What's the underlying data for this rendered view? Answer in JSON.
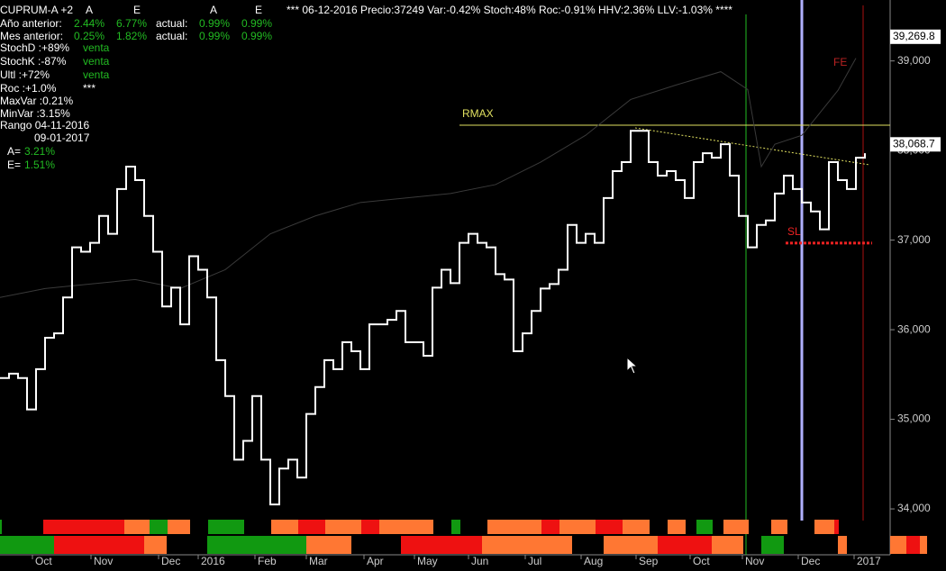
{
  "panel": {
    "rows": [
      [
        "CUPRUM-A +2",
        "A",
        "E",
        "A",
        "E"
      ],
      [
        "Año anterior:",
        "2.44%",
        "6.77%",
        "actual:",
        "0.99%",
        "0.99%"
      ],
      [
        "Mes anterior:",
        "0.25%",
        "1.82%",
        "actual:",
        "0.99%",
        "0.99%"
      ],
      [
        "StochD  :+89%",
        "venta"
      ],
      [
        "StochK  :-87%",
        "venta"
      ],
      [
        "Ultl      :+72%",
        "venta"
      ],
      [
        "Roc      :+1.0%",
        "***"
      ],
      [
        "MaxVar :0.21%"
      ],
      [
        "MinVar :3.15%"
      ],
      [
        "Rango 04-11-2016"
      ],
      [
        "09-01-2017"
      ],
      [
        "A=",
        "3.21%"
      ],
      [
        "E=",
        "1.51%"
      ]
    ]
  },
  "chart_data": {
    "type": "line",
    "title": "*** 06-12-2016 Precio:37249 Var:-0.42% Stoch:48% Roc:-0.91% HHV:2.36% LLV:-1.03% ****",
    "x": [
      0,
      1,
      2,
      3,
      4,
      5,
      6,
      7,
      8,
      9,
      10,
      11,
      12,
      13,
      14,
      15,
      16,
      17,
      18,
      19,
      20,
      21,
      22,
      23,
      24,
      25,
      26,
      27,
      28,
      29,
      30,
      31,
      32,
      33,
      34,
      35,
      36,
      37,
      38,
      39,
      40,
      41,
      42,
      43,
      44,
      45,
      46,
      47,
      48,
      49,
      50,
      51,
      52,
      53,
      54,
      55,
      56,
      57,
      58,
      59,
      60,
      61,
      62,
      63,
      64,
      65,
      66,
      67,
      68,
      69,
      70,
      71,
      72,
      73,
      74,
      75,
      76,
      77,
      78,
      79,
      80,
      81,
      82,
      83,
      84,
      85,
      86,
      87,
      88,
      89,
      90,
      91,
      92,
      93,
      94,
      95,
      96
    ],
    "series": [
      {
        "color": "#ffffff",
        "values": [
          35460,
          35510,
          35460,
          35110,
          35560,
          35910,
          35960,
          36360,
          36920,
          36870,
          36970,
          37270,
          37070,
          37570,
          37820,
          37670,
          37270,
          36870,
          36260,
          36470,
          36060,
          36820,
          36670,
          36360,
          35660,
          35260,
          34550,
          34760,
          35260,
          34550,
          34050,
          34450,
          34550,
          34350,
          35060,
          35360,
          35660,
          35560,
          35860,
          35760,
          35560,
          36060,
          36060,
          36110,
          36210,
          35860,
          35860,
          35710,
          36470,
          36670,
          36520,
          36970,
          37070,
          36970,
          36920,
          36620,
          36560,
          35760,
          35960,
          36210,
          36460,
          36510,
          36670,
          37170,
          36970,
          37070,
          36970,
          37470,
          37770,
          37870,
          38220,
          38220,
          37870,
          37720,
          37770,
          37670,
          37470,
          37870,
          37970,
          37920,
          38070,
          37720,
          37270,
          36920,
          37170,
          37220,
          37520,
          37720,
          37570,
          37420,
          37320,
          37120,
          37870,
          37670,
          37570,
          37920,
          37970
        ]
      },
      {
        "color": "#3a3a3a",
        "x": [
          0,
          5,
          10,
          15,
          20,
          25,
          30,
          35,
          40,
          45,
          50,
          55,
          60,
          65,
          70,
          75,
          80,
          83,
          84.5,
          86,
          89,
          91,
          93,
          95
        ],
        "values": [
          36360,
          36460,
          36510,
          36560,
          36460,
          36670,
          37070,
          37270,
          37420,
          37470,
          37520,
          37620,
          37870,
          38170,
          38570,
          38730,
          38880,
          38680,
          37820,
          38070,
          38170,
          38420,
          38670,
          39030
        ]
      }
    ],
    "xlim": [
      0,
      98.5
    ],
    "xticks": [
      {
        "value": 3.6,
        "label": "Oct"
      },
      {
        "value": 10.1,
        "label": "Nov"
      },
      {
        "value": 17.6,
        "label": "Dec"
      },
      {
        "value": 22,
        "label": "2016"
      },
      {
        "value": 28.3,
        "label": "Feb"
      },
      {
        "value": 34,
        "label": "Mar"
      },
      {
        "value": 40.4,
        "label": "Apr"
      },
      {
        "value": 46,
        "label": "May"
      },
      {
        "value": 52,
        "label": "Jun"
      },
      {
        "value": 58.3,
        "label": "Jul"
      },
      {
        "value": 64.5,
        "label": "Aug"
      },
      {
        "value": 70.6,
        "label": "Sep"
      },
      {
        "value": 76.6,
        "label": "Oct"
      },
      {
        "value": 82.4,
        "label": "Nov"
      },
      {
        "value": 88.6,
        "label": "Dec"
      },
      {
        "value": 94.8,
        "label": "2017"
      }
    ],
    "ylim": [
      33900,
      39680
    ],
    "yticks": [
      {
        "value": 34000,
        "label": "34,000"
      },
      {
        "value": 35000,
        "label": "35,000"
      },
      {
        "value": 36000,
        "label": "36,000"
      },
      {
        "value": 37000,
        "label": "37,000"
      },
      {
        "value": 38000,
        "label": "38,000"
      },
      {
        "value": 39000,
        "label": "39,000"
      }
    ],
    "price_tags": [
      {
        "value": 39269.8,
        "label": "39,269.8"
      },
      {
        "value": 38068.7,
        "label": "38,068.7"
      }
    ],
    "rmax": {
      "value": 38283,
      "label": "RMAX"
    },
    "sl": {
      "value": 36967,
      "label": "SL"
    },
    "fe": "FE"
  }
}
